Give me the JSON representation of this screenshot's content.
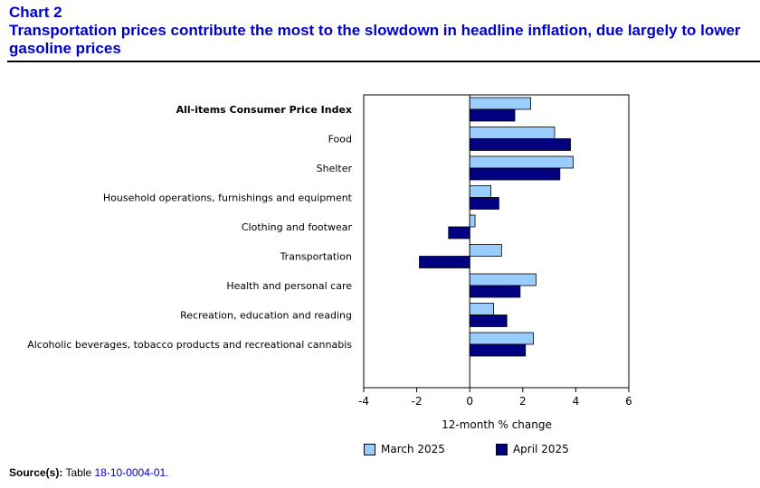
{
  "header": {
    "label": "Chart 2",
    "title": "Transportation prices contribute the most to the slowdown in headline inflation, due largely to lower gasoline prices"
  },
  "chart_data": {
    "type": "bar",
    "orientation": "horizontal",
    "categories": [
      "All-items Consumer Price Index",
      "Food",
      "Shelter",
      "Household operations, furnishings and equipment",
      "Clothing and footwear",
      "Transportation",
      "Health and personal care",
      "Recreation, education and reading",
      "Alcoholic beverages, tobacco products and recreational cannabis"
    ],
    "series": [
      {
        "name": "March 2025",
        "color": "#99ccff",
        "values": [
          2.3,
          3.2,
          3.9,
          0.8,
          0.2,
          1.2,
          2.5,
          0.9,
          2.4
        ]
      },
      {
        "name": "April 2025",
        "color": "#000080",
        "values": [
          1.7,
          3.8,
          3.4,
          1.1,
          -0.8,
          -1.9,
          1.9,
          1.4,
          2.1
        ]
      }
    ],
    "xlabel": "12-month % change",
    "xlim": [
      -4,
      6
    ],
    "xticks": [
      -4,
      -2,
      0,
      2,
      4,
      6
    ],
    "bold_category": "All-items Consumer Price Index",
    "legend_position": "bottom"
  },
  "source": {
    "label": "Source(s):",
    "text": "Table",
    "link": "18-10-0004-01."
  }
}
